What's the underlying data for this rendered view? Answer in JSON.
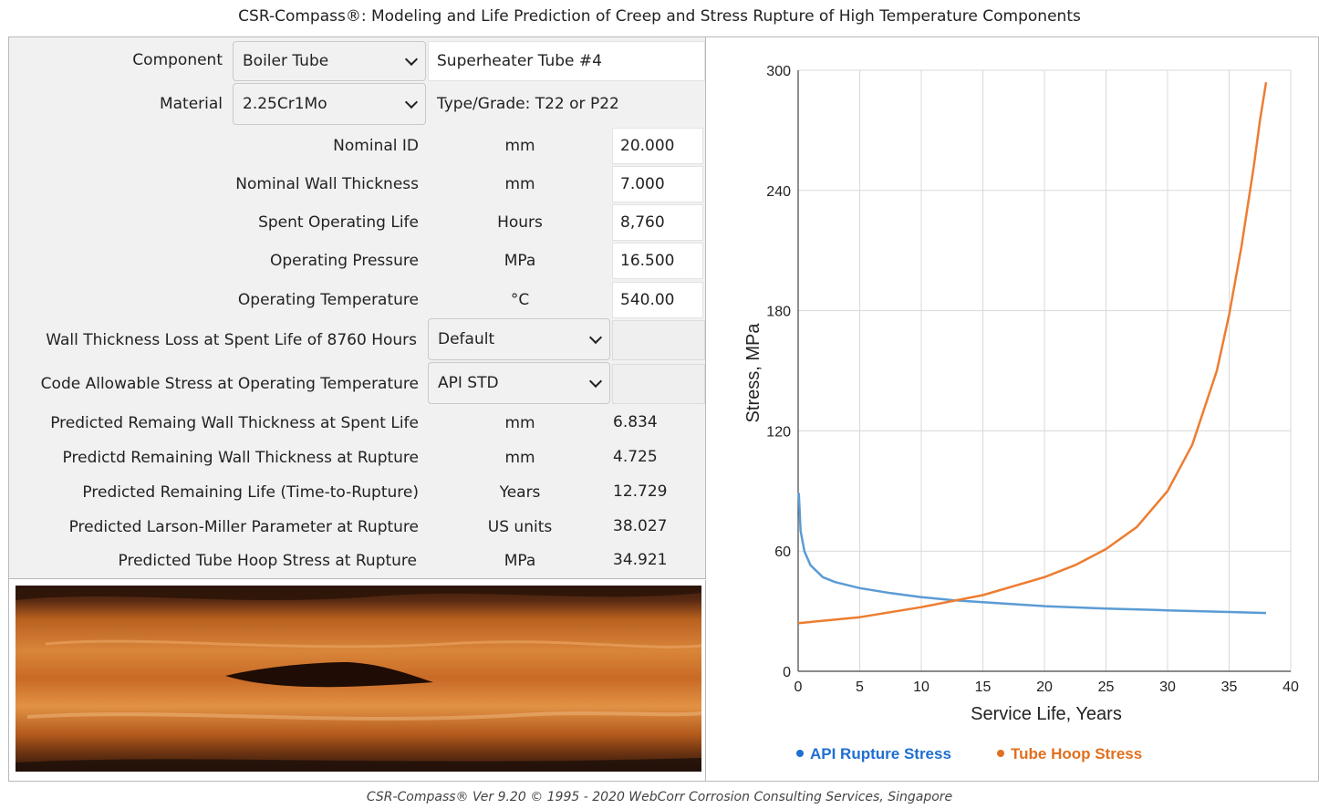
{
  "title": "CSR-Compass®: Modeling and Life Prediction of Creep and Stress Rupture of High Temperature Components",
  "footer": "CSR-Compass® Ver 9.20 © 1995 - 2020 WebCorr Corrosion Consulting Services, Singapore",
  "form": {
    "component": {
      "label": "Component",
      "selected": "Boiler Tube",
      "name_value": "Superheater Tube #4"
    },
    "material": {
      "label": "Material",
      "selected": "2.25Cr1Mo",
      "grade_text": "Type/Grade: T22 or P22"
    },
    "inputs": [
      {
        "label": "Nominal ID",
        "unit": "mm",
        "value": "20.000"
      },
      {
        "label": "Nominal Wall Thickness",
        "unit": "mm",
        "value": "7.000"
      },
      {
        "label": "Spent Operating Life",
        "unit": "Hours",
        "value": "8,760"
      },
      {
        "label": "Operating Pressure",
        "unit": "MPa",
        "value": "16.500"
      },
      {
        "label": "Operating Temperature",
        "unit": "°C",
        "value": "540.00"
      }
    ],
    "wall_loss": {
      "label": "Wall Thickness Loss at Spent Life of 8760 Hours",
      "selected": "Default",
      "value": ""
    },
    "allowable": {
      "label": "Code Allowable Stress at Operating Temperature",
      "selected": "API STD",
      "value": ""
    },
    "results": [
      {
        "label": "Predicted Remaing Wall Thickness at Spent Life",
        "unit": "mm",
        "value": "6.834"
      },
      {
        "label": "Predictd Remaining Wall Thickness at Rupture",
        "unit": "mm",
        "value": "4.725"
      },
      {
        "label": "Predicted Remaining Life (Time-to-Rupture)",
        "unit": "Years",
        "value": "12.729"
      },
      {
        "label": "Predicted Larson-Miller Parameter at Rupture",
        "unit": "US units",
        "value": "38.027"
      },
      {
        "label": "Predicted Tube Hoop Stress at Rupture",
        "unit": "MPa",
        "value": "34.921"
      }
    ]
  },
  "colors": {
    "blue": "#5b9bd5",
    "orange": "#ed7d31",
    "legend_blue": "#1f6fd1",
    "legend_orange": "#e07020"
  },
  "chart_data": {
    "type": "line",
    "xlabel": "Service Life, Years",
    "ylabel": "Stress, MPa",
    "xlim": [
      0,
      40
    ],
    "ylim": [
      0,
      300
    ],
    "xticks": [
      0,
      5,
      10,
      15,
      20,
      25,
      30,
      35,
      40
    ],
    "yticks": [
      0,
      60,
      120,
      180,
      240,
      300
    ],
    "grid": true,
    "legend_position": "bottom",
    "series": [
      {
        "name": "API Rupture Stress",
        "color": "#5b9bd5",
        "x": [
          0.05,
          0.2,
          0.5,
          1,
          2,
          3,
          5,
          7.5,
          10,
          12.5,
          15,
          20,
          25,
          30,
          35,
          38
        ],
        "y": [
          89,
          70,
          60,
          53,
          47,
          44.5,
          41.5,
          39,
          37,
          35.5,
          34.5,
          32.5,
          31.3,
          30.4,
          29.6,
          29.1
        ]
      },
      {
        "name": "Tube Hoop Stress",
        "color": "#ed7d31",
        "x": [
          0,
          5,
          10,
          15,
          20,
          22.5,
          25,
          27.5,
          30,
          32,
          34,
          35,
          36,
          37,
          37.5,
          38
        ],
        "y": [
          24,
          27,
          32,
          38,
          47,
          53,
          61,
          72,
          90,
          113,
          150,
          178,
          212,
          252,
          275,
          294
        ]
      }
    ]
  }
}
